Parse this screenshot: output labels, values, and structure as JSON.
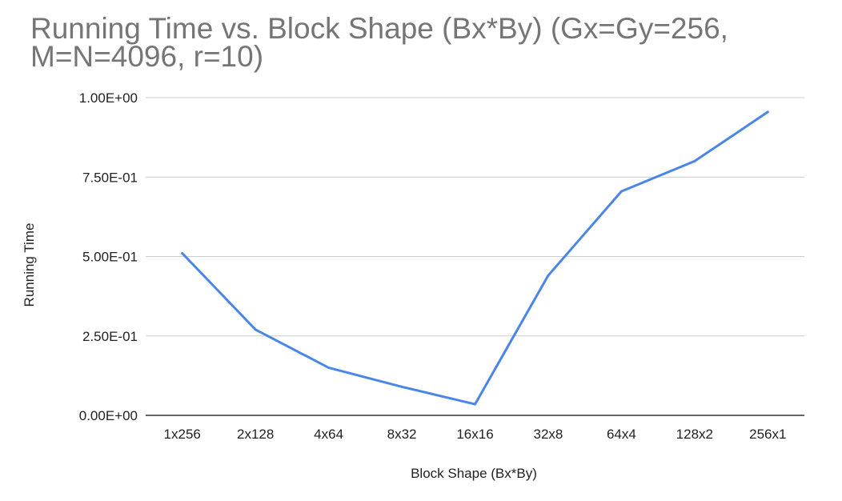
{
  "chart_data": {
    "type": "line",
    "title_lines": [
      "Running Time vs. Block Shape (Bx*By) (Gx=Gy=256,",
      "M=N=4096, r=10)"
    ],
    "xlabel": "Block Shape (Bx*By)",
    "ylabel": "Running Time",
    "categories": [
      "1x256",
      "2x128",
      "4x64",
      "8x32",
      "16x16",
      "32x8",
      "64x4",
      "128x2",
      "256x1"
    ],
    "series": [
      {
        "values": [
          0.51,
          0.27,
          0.15,
          0.09,
          0.035,
          0.44,
          0.705,
          0.8,
          0.955
        ]
      }
    ],
    "ylim": [
      0,
      1.0
    ],
    "yticks": [
      0,
      0.25,
      0.5,
      0.75,
      1.0
    ],
    "ytick_labels": [
      "0.00E+00",
      "2.50E-01",
      "5.00E-01",
      "7.50E-01",
      "1.00E+00"
    ],
    "grid": true,
    "legend": "none",
    "colors": {
      "line": "#4a86e8",
      "grid": "#cccccc",
      "axis": "#333333",
      "title": "#757575"
    }
  }
}
